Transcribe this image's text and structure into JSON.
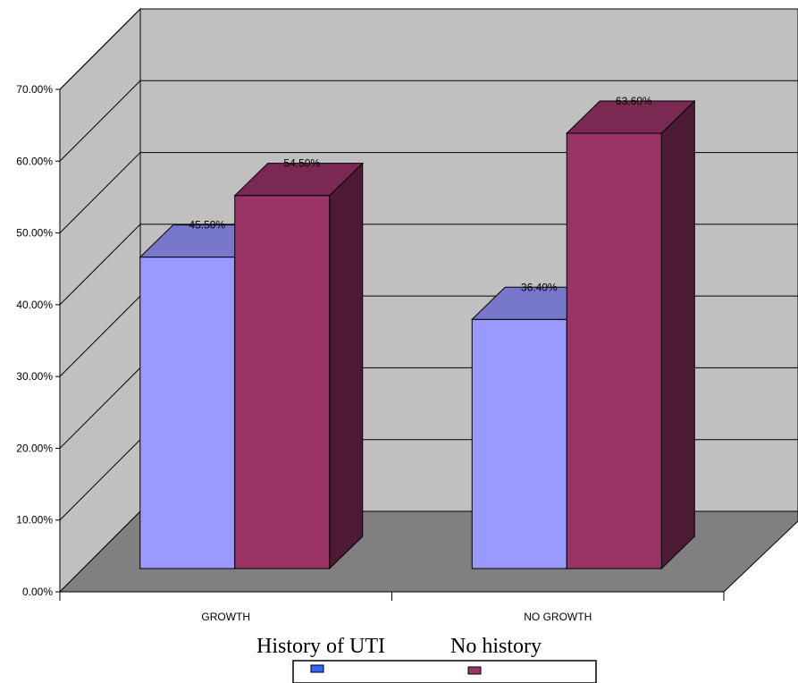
{
  "chart_data": {
    "type": "bar",
    "categories": [
      "GROWTH",
      "NO GROWTH"
    ],
    "series": [
      {
        "name": "History of UTI",
        "values": [
          45.5,
          36.4
        ],
        "labels": [
          "45.50%",
          "36.40%"
        ],
        "color": "#9999FF",
        "top_color": "#7777CC",
        "legend_color": "#3366FF"
      },
      {
        "name": "No history",
        "values": [
          54.5,
          63.6
        ],
        "labels": [
          "54.50%",
          "63.60%"
        ],
        "color": "#993366",
        "top_color": "#7A2952",
        "side_color": "#4D1A33",
        "legend_color": "#993366"
      }
    ],
    "ylim": [
      0,
      70
    ],
    "yticks": [
      "0.00%",
      "10.00%",
      "20.00%",
      "30.00%",
      "40.00%",
      "50.00%",
      "60.00%",
      "70.00%"
    ],
    "title": "",
    "xlabel": "",
    "ylabel": "",
    "grid": true,
    "legend_position": "bottom",
    "style": "3d-clustered-column",
    "wall_color": "#C0C0C0",
    "floor_color": "#808080"
  }
}
